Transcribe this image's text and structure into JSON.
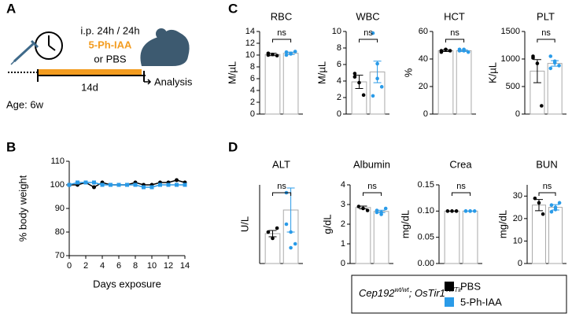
{
  "panels": [
    "A",
    "B",
    "C",
    "D"
  ],
  "schematic": {
    "injection": "i.p. 24h / 24h",
    "drug": "5-Ph-IAA",
    "control": "or PBS",
    "duration": "14d",
    "endpoint": "Analysis",
    "age": "Age: 6w"
  },
  "legend_title": [
    "Cep192",
    "wt/wt",
    "; OsTir1",
    "Tir/Tir"
  ],
  "chart_data": [
    {
      "type": "line",
      "xlabel": "Days exposure",
      "ylabel": "% body weight",
      "x": [
        0,
        1,
        2,
        3,
        4,
        5,
        6,
        7,
        8,
        9,
        10,
        11,
        12,
        13,
        14
      ],
      "series": [
        {
          "name": "PBS",
          "color": "#000000",
          "values": [
            100,
            100,
            101,
            99,
            101,
            100,
            100,
            100,
            101,
            100,
            100,
            101,
            101,
            102,
            101
          ]
        },
        {
          "name": "5-Ph-IAA",
          "color": "#2a9be8",
          "values": [
            100,
            101,
            101,
            101,
            100,
            100,
            100,
            100,
            100,
            99,
            99,
            100,
            100,
            100,
            100
          ]
        }
      ],
      "xlim": [
        0,
        14
      ],
      "xticks": [
        0,
        2,
        4,
        6,
        8,
        10,
        12,
        14
      ],
      "ylim": [
        70,
        110
      ],
      "yticks": [
        70,
        80,
        90,
        100,
        110
      ]
    },
    {
      "type": "bar",
      "title": "RBC",
      "ylabel": "M/µL",
      "annotation": "ns",
      "categories": [
        null,
        null
      ],
      "values": [
        10.1,
        10.3
      ],
      "errors": [
        0.2,
        0.2
      ],
      "points": [
        [
          10.0,
          10.1,
          9.9,
          10.3
        ],
        [
          10.5,
          10.2,
          10.6,
          10.0,
          10.3
        ]
      ],
      "ylim": [
        0,
        14
      ],
      "yticks": [
        0,
        2,
        4,
        6,
        8,
        10,
        12,
        14
      ]
    },
    {
      "type": "bar",
      "title": "WBC",
      "ylabel": "M/µL",
      "annotation": "ns",
      "categories": [
        null,
        null
      ],
      "values": [
        3.9,
        5.1
      ],
      "errors": [
        0.8,
        1.3
      ],
      "points": [
        [
          4.9,
          3.8,
          2.3,
          4.5
        ],
        [
          9.8,
          6.1,
          3.3,
          2.2,
          4.3
        ]
      ],
      "ylim": [
        0,
        10
      ],
      "yticks": [
        0,
        2,
        4,
        6,
        8,
        10
      ]
    },
    {
      "type": "bar",
      "title": "HCT",
      "ylabel": "%",
      "annotation": "ns",
      "categories": [
        null,
        null
      ],
      "values": [
        46,
        46
      ],
      "errors": [
        0.6,
        0.6
      ],
      "points": [
        [
          45,
          47,
          46,
          46
        ],
        [
          47,
          46,
          45,
          46,
          47
        ]
      ],
      "ylim": [
        0,
        60
      ],
      "yticks": [
        0,
        20,
        40,
        60
      ]
    },
    {
      "type": "bar",
      "title": "PLT",
      "ylabel": "K/µL",
      "annotation": "ns",
      "categories": [
        null,
        null
      ],
      "values": [
        780,
        920
      ],
      "errors": [
        210,
        50
      ],
      "points": [
        [
          1050,
          920,
          150,
          1020
        ],
        [
          1050,
          930,
          880,
          830,
          960
        ]
      ],
      "ylim": [
        0,
        1500
      ],
      "yticks": [
        0,
        500,
        1000,
        1500
      ]
    },
    {
      "type": "bar",
      "title": "ALT",
      "ylabel": "U/L",
      "annotation": "ns",
      "categories": [
        null,
        null
      ],
      "values": [
        38,
        68
      ],
      "errors": [
        4,
        28
      ],
      "points": [
        [
          40,
          32,
          45
        ],
        [
          90,
          40,
          25,
          50,
          20
        ]
      ],
      "ylim": [
        0,
        100
      ]
    },
    {
      "type": "bar",
      "title": "Albumin",
      "ylabel": "g/dL",
      "annotation": "ns",
      "categories": [
        null,
        null
      ],
      "values": [
        2.85,
        2.65
      ],
      "errors": [
        0.07,
        0.06
      ],
      "points": [
        [
          2.9,
          2.8,
          2.7
        ],
        [
          2.6,
          2.5,
          2.8,
          2.7,
          2.6
        ]
      ],
      "ylim": [
        0,
        4
      ],
      "yticks": [
        0,
        1,
        2,
        3,
        4
      ]
    },
    {
      "type": "bar",
      "title": "Crea",
      "ylabel": "mg/dL",
      "annotation": "ns",
      "categories": [
        null,
        null
      ],
      "values": [
        0.1,
        0.1
      ],
      "errors": [
        0,
        0
      ],
      "points": [
        [
          0.1,
          0.1,
          0.1
        ],
        [
          0.1,
          0.1,
          0.1,
          0.1,
          0.1
        ]
      ],
      "ylim": [
        0,
        0.15
      ],
      "yticks": [
        {
          "value": 0,
          "label": "0.00"
        },
        {
          "value": 0.05,
          "label": "0.05"
        },
        {
          "value": 0.1,
          "label": "0.10"
        },
        {
          "value": 0.15,
          "label": "0.15"
        }
      ]
    },
    {
      "type": "bar",
      "title": "BUN",
      "ylabel": "mg/dL",
      "annotation": "ns",
      "categories": [
        null,
        null
      ],
      "values": [
        26,
        25
      ],
      "errors": [
        2.5,
        1.2
      ],
      "points": [
        [
          29,
          27,
          22
        ],
        [
          23,
          24,
          27,
          26,
          25
        ]
      ],
      "ylim": [
        0,
        35
      ],
      "yticks": [
        0,
        10,
        20,
        30
      ]
    }
  ]
}
